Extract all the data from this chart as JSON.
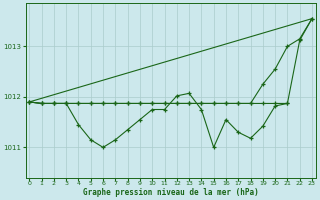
{
  "title": "Graphe pression niveau de la mer (hPa)",
  "bg": "#cce8ec",
  "grid_color": "#aacccc",
  "lc": "#1a6618",
  "ylim": [
    1010.4,
    1013.85
  ],
  "xlim": [
    -0.3,
    23.3
  ],
  "yticks": [
    1011,
    1012,
    1013
  ],
  "xticks": [
    0,
    1,
    2,
    3,
    4,
    5,
    6,
    7,
    8,
    9,
    10,
    11,
    12,
    13,
    14,
    15,
    16,
    17,
    18,
    19,
    20,
    21,
    22,
    23
  ],
  "straight_line_x": [
    0,
    23
  ],
  "straight_line_y": [
    1011.9,
    1013.55
  ],
  "curve_gradual_x": [
    0,
    1,
    2,
    3,
    4,
    5,
    6,
    7,
    8,
    9,
    10,
    11,
    12,
    13,
    14,
    15,
    16,
    17,
    18,
    19,
    20,
    21,
    22,
    23
  ],
  "curve_gradual_y": [
    1011.9,
    1011.87,
    1011.87,
    1011.87,
    1011.87,
    1011.87,
    1011.87,
    1011.87,
    1011.87,
    1011.87,
    1011.87,
    1011.87,
    1011.87,
    1011.87,
    1011.87,
    1011.87,
    1011.87,
    1011.87,
    1011.87,
    1012.25,
    1012.55,
    1013.0,
    1013.15,
    1013.55
  ],
  "curve_wiggly_x": [
    0,
    1,
    2,
    3,
    4,
    5,
    6,
    7,
    8,
    9,
    10,
    11,
    12,
    13,
    14,
    15,
    16,
    17,
    18,
    19,
    20,
    21,
    22,
    23
  ],
  "curve_wiggly_y": [
    1011.9,
    1011.87,
    1011.87,
    1011.87,
    1011.45,
    1011.15,
    1011.0,
    1011.15,
    1011.35,
    1011.55,
    1011.75,
    1011.75,
    1012.02,
    1012.07,
    1011.75,
    1011.0,
    1011.55,
    1011.3,
    1011.18,
    1011.42,
    1011.82,
    1011.87,
    1013.12,
    1013.55
  ],
  "curve_flat_x": [
    0,
    1,
    2,
    3,
    4,
    5,
    6,
    7,
    8,
    9,
    10,
    11,
    12,
    13,
    14,
    15,
    16,
    17,
    18,
    19,
    20,
    21
  ],
  "curve_flat_y": [
    1011.9,
    1011.87,
    1011.87,
    1011.87,
    1011.87,
    1011.87,
    1011.87,
    1011.87,
    1011.87,
    1011.87,
    1011.87,
    1011.87,
    1011.87,
    1011.87,
    1011.87,
    1011.87,
    1011.87,
    1011.87,
    1011.87,
    1011.87,
    1011.87,
    1011.87
  ]
}
